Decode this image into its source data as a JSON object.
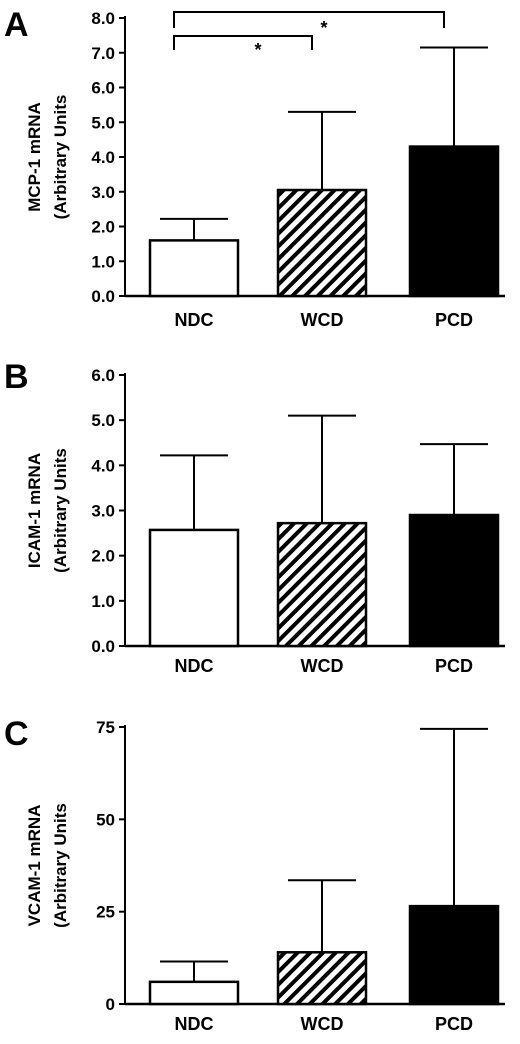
{
  "colors": {
    "ink": "#000000",
    "paper": "#ffffff"
  },
  "chart_data": [
    {
      "panel": "A",
      "type": "bar",
      "ylabel_line1": "MCP-1 mRNA",
      "ylabel_line2": "(Arbitrary Units",
      "categories": [
        "NDC",
        "WCD",
        "PCD"
      ],
      "fills": [
        "white",
        "hatched",
        "black"
      ],
      "values": [
        1.6,
        3.05,
        4.3
      ],
      "error_upper": [
        2.22,
        5.3,
        7.15
      ],
      "ylim": [
        0.0,
        8.0
      ],
      "yticks": [
        "0.0",
        "1.0",
        "2.0",
        "3.0",
        "4.0",
        "5.0",
        "6.0",
        "7.0",
        "8.0"
      ],
      "significance": [
        {
          "from": "NDC",
          "to": "WCD",
          "label": "*"
        },
        {
          "from": "NDC",
          "to": "PCD",
          "label": "*"
        }
      ]
    },
    {
      "panel": "B",
      "type": "bar",
      "ylabel_line1": "ICAM-1 mRNA",
      "ylabel_line2": "(Arbitrary Units",
      "categories": [
        "NDC",
        "WCD",
        "PCD"
      ],
      "fills": [
        "white",
        "hatched",
        "black"
      ],
      "values": [
        2.57,
        2.72,
        2.9
      ],
      "error_upper": [
        4.22,
        5.1,
        4.47
      ],
      "ylim": [
        0.0,
        6.0
      ],
      "yticks": [
        "0.0",
        "1.0",
        "2.0",
        "3.0",
        "4.0",
        "5.0",
        "6.0"
      ],
      "significance": []
    },
    {
      "panel": "C",
      "type": "bar",
      "ylabel_line1": "VCAM-1 mRNA",
      "ylabel_line2": "(Arbitrary Units",
      "categories": [
        "NDC",
        "WCD",
        "PCD"
      ],
      "fills": [
        "white",
        "hatched",
        "black"
      ],
      "values": [
        6,
        14,
        26.5
      ],
      "error_upper": [
        11.5,
        33.5,
        74.5
      ],
      "ylim": [
        0,
        75
      ],
      "yticks": [
        "0",
        "25",
        "50",
        "75"
      ],
      "significance": []
    }
  ]
}
